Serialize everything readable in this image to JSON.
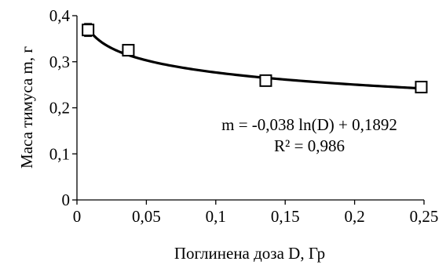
{
  "chart_data": {
    "type": "scatter",
    "title": "",
    "xlabel": "Поглинена доза D, Гр",
    "ylabel": "Маса тимуса m, г",
    "xlim": [
      0,
      0.25
    ],
    "ylim": [
      0,
      0.4
    ],
    "x_ticks": [
      0,
      0.05,
      0.1,
      0.15,
      0.2,
      0.25
    ],
    "y_ticks": [
      0,
      0.1,
      0.2,
      0.3,
      0.4
    ],
    "x_tick_labels": [
      "0",
      "0,05",
      "0,1",
      "0,15",
      "0,2",
      "0,25"
    ],
    "y_tick_labels": [
      "0",
      "0,1",
      "0,2",
      "0,3",
      "0,4"
    ],
    "grid": false,
    "series": [
      {
        "marker": "open-square",
        "x": [
          0.008,
          0.037,
          0.136,
          0.248
        ],
        "y": [
          0.369,
          0.325,
          0.259,
          0.245
        ],
        "error": [
          0.014,
          0.011,
          0.006,
          0.005
        ]
      }
    ],
    "trendline": {
      "type": "logarithmic",
      "a": -0.038,
      "b": 0.1892,
      "x_range": [
        0.008,
        0.248
      ]
    },
    "annotations": {
      "equation": "m = -0,038 ln(D) + 0,1892",
      "r_squared": "R² = 0,986"
    },
    "colors": {
      "line": "#000000",
      "marker_fill": "#ffffff"
    }
  }
}
